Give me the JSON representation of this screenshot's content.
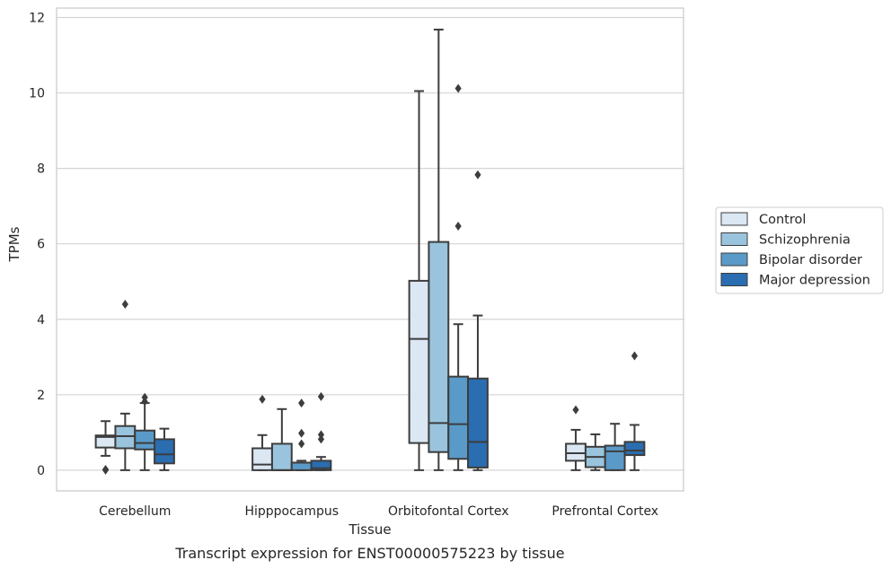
{
  "chart_data": {
    "type": "box",
    "title": "Transcript expression for ENST00000575223 by tissue",
    "xlabel": "Tissue",
    "ylabel": "TPMs",
    "ylim": [
      -0.55,
      12.25
    ],
    "yticks": [
      0,
      2,
      4,
      6,
      8,
      10,
      12
    ],
    "grid": true,
    "legend_position": "right",
    "categories": [
      "Cerebellum",
      "Hipppocampus",
      "Orbitofontal Cortex",
      "Prefrontal Cortex"
    ],
    "series": [
      {
        "name": "Control",
        "color": "#dbe7f3",
        "boxes": [
          {
            "whislo": 0.38,
            "q1": 0.6,
            "med": 0.88,
            "q3": 0.92,
            "whishi": 1.3,
            "fliers": [
              0.0,
              0.02
            ]
          },
          {
            "whislo": 0.0,
            "q1": 0.0,
            "med": 0.15,
            "q3": 0.58,
            "whishi": 0.93,
            "fliers": [
              1.88
            ]
          },
          {
            "whislo": 0.0,
            "q1": 0.72,
            "med": 3.48,
            "q3": 5.02,
            "whishi": 10.05,
            "fliers": []
          },
          {
            "whislo": 0.0,
            "q1": 0.25,
            "med": 0.45,
            "q3": 0.7,
            "whishi": 1.07,
            "fliers": [
              1.6
            ]
          }
        ]
      },
      {
        "name": "Schizophrenia",
        "color": "#9ac4dd",
        "boxes": [
          {
            "whislo": 0.0,
            "q1": 0.58,
            "med": 0.9,
            "q3": 1.17,
            "whishi": 1.5,
            "fliers": [
              4.4
            ]
          },
          {
            "whislo": 0.0,
            "q1": 0.0,
            "med": 0.0,
            "q3": 0.7,
            "whishi": 1.62,
            "fliers": []
          },
          {
            "whislo": 0.0,
            "q1": 0.48,
            "med": 1.25,
            "q3": 6.05,
            "whishi": 11.68,
            "fliers": []
          },
          {
            "whislo": 0.0,
            "q1": 0.08,
            "med": 0.35,
            "q3": 0.62,
            "whishi": 0.95,
            "fliers": []
          }
        ]
      },
      {
        "name": "Bipolar disorder",
        "color": "#5a9ac8",
        "boxes": [
          {
            "whislo": 0.0,
            "q1": 0.55,
            "med": 0.72,
            "q3": 1.05,
            "whishi": 1.78,
            "fliers": [
              1.82,
              1.93
            ]
          },
          {
            "whislo": 0.0,
            "q1": 0.0,
            "med": 0.2,
            "q3": 0.2,
            "whishi": 0.25,
            "fliers": [
              0.7,
              0.98,
              1.78
            ]
          },
          {
            "whislo": 0.0,
            "q1": 0.3,
            "med": 1.22,
            "q3": 2.48,
            "whishi": 3.87,
            "fliers": [
              6.47,
              10.12
            ]
          },
          {
            "whislo": 0.0,
            "q1": 0.0,
            "med": 0.5,
            "q3": 0.65,
            "whishi": 1.23,
            "fliers": []
          }
        ]
      },
      {
        "name": "Major depression",
        "color": "#2a6db1",
        "boxes": [
          {
            "whislo": 0.0,
            "q1": 0.18,
            "med": 0.42,
            "q3": 0.82,
            "whishi": 1.1,
            "fliers": []
          },
          {
            "whislo": 0.0,
            "q1": 0.0,
            "med": 0.05,
            "q3": 0.25,
            "whishi": 0.35,
            "fliers": [
              0.82,
              0.94,
              1.95
            ]
          },
          {
            "whislo": 0.0,
            "q1": 0.07,
            "med": 0.75,
            "q3": 2.43,
            "whishi": 4.1,
            "fliers": [
              7.83
            ]
          },
          {
            "whislo": 0.0,
            "q1": 0.4,
            "med": 0.52,
            "q3": 0.75,
            "whishi": 1.2,
            "fliers": [
              3.03
            ]
          }
        ]
      }
    ]
  }
}
